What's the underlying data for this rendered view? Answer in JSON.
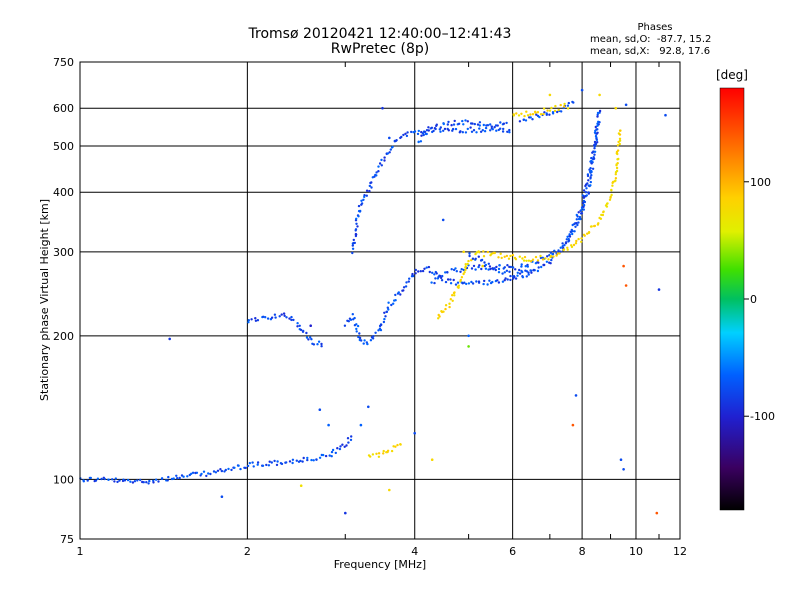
{
  "header": {
    "title": "Tromsø 20120421 12:40:00–12:41:43",
    "subtitle": "RwPretec (8p)"
  },
  "phases": {
    "title": "Phases",
    "row_o": "mean, sd,O:  -87.7, 15.2",
    "row_x": "mean, sd,X:   92.8, 17.6"
  },
  "colorbar": {
    "unit": "[deg]",
    "tick_labels": [
      "100",
      "0",
      "-100"
    ],
    "tick_values": [
      100,
      0,
      -100
    ],
    "range": [
      -180,
      180
    ]
  },
  "chart_data": {
    "type": "scatter",
    "xlabel": "Frequency [MHz]",
    "ylabel": "Stationary phase Virtual Height [km]",
    "xscale": "log",
    "yscale": "log",
    "xlim": [
      1,
      12
    ],
    "ylim": [
      75,
      750
    ],
    "xticks": [
      1,
      2,
      4,
      6,
      8,
      10,
      12
    ],
    "xtick_labels": [
      "1",
      "2",
      "4",
      "6",
      "8",
      "10",
      "12"
    ],
    "yticks": [
      75,
      100,
      200,
      300,
      400,
      500,
      600,
      750
    ],
    "ytick_labels": [
      "75",
      "100",
      "200",
      "300",
      "400",
      "500",
      "600",
      "750"
    ],
    "grid": true,
    "traces": [
      {
        "phase": -100,
        "points": [
          [
            1.0,
            100
          ],
          [
            1.1,
            100
          ],
          [
            1.2,
            99
          ],
          [
            1.3,
            99
          ],
          [
            1.4,
            100
          ],
          [
            1.5,
            101
          ],
          [
            1.6,
            102
          ],
          [
            1.8,
            104
          ],
          [
            2.0,
            107
          ],
          [
            2.2,
            108
          ],
          [
            2.4,
            109
          ],
          [
            2.6,
            110
          ],
          [
            2.8,
            112
          ],
          [
            3.0,
            118
          ],
          [
            3.1,
            124
          ]
        ]
      },
      {
        "phase": 100,
        "points": [
          [
            3.3,
            111
          ],
          [
            3.4,
            112
          ],
          [
            3.5,
            113
          ],
          [
            3.6,
            115
          ],
          [
            3.7,
            117
          ],
          [
            3.8,
            120
          ]
        ]
      },
      {
        "phase": -100,
        "points": [
          [
            2.0,
            216
          ],
          [
            2.1,
            217
          ],
          [
            2.2,
            219
          ],
          [
            2.3,
            222
          ],
          [
            2.45,
            213
          ],
          [
            2.6,
            195
          ],
          [
            2.75,
            190
          ]
        ]
      },
      {
        "phase": -100,
        "points": [
          [
            3.0,
            212
          ],
          [
            3.1,
            220
          ],
          [
            3.2,
            195
          ],
          [
            3.3,
            193
          ],
          [
            3.45,
            205
          ],
          [
            3.6,
            232
          ],
          [
            3.8,
            248
          ],
          [
            4.0,
            272
          ],
          [
            4.2,
            278
          ],
          [
            4.5,
            262
          ],
          [
            4.8,
            258
          ],
          [
            5.2,
            258
          ],
          [
            5.8,
            261
          ],
          [
            6.5,
            272
          ],
          [
            7.0,
            287
          ],
          [
            7.5,
            315
          ],
          [
            8.0,
            375
          ],
          [
            8.2,
            430
          ],
          [
            8.5,
            520
          ],
          [
            8.6,
            600
          ]
        ]
      },
      {
        "phase": -100,
        "points": [
          [
            4.3,
            258
          ],
          [
            4.6,
            272
          ],
          [
            5.0,
            278
          ],
          [
            5.5,
            278
          ],
          [
            6.2,
            278
          ],
          [
            6.8,
            290
          ],
          [
            7.4,
            305
          ],
          [
            7.9,
            350
          ],
          [
            8.2,
            400
          ],
          [
            8.4,
            470
          ],
          [
            8.5,
            560
          ]
        ]
      },
      {
        "phase": -100,
        "points": [
          [
            3.1,
            300
          ],
          [
            3.15,
            350
          ],
          [
            3.2,
            380
          ],
          [
            3.3,
            405
          ],
          [
            3.4,
            435
          ],
          [
            3.5,
            462
          ],
          [
            3.6,
            490
          ],
          [
            3.7,
            515
          ],
          [
            3.8,
            528
          ],
          [
            4.0,
            530
          ],
          [
            4.3,
            538
          ],
          [
            4.8,
            540
          ],
          [
            5.5,
            540
          ],
          [
            6.0,
            540
          ]
        ]
      },
      {
        "phase": -100,
        "points": [
          [
            4.05,
            505
          ],
          [
            4.2,
            540
          ],
          [
            4.4,
            552
          ],
          [
            4.7,
            560
          ],
          [
            5.0,
            560
          ],
          [
            5.5,
            552
          ],
          [
            5.9,
            555
          ]
        ]
      },
      {
        "phase": -100,
        "points": [
          [
            6.2,
            560
          ],
          [
            6.6,
            575
          ],
          [
            7.0,
            588
          ],
          [
            7.4,
            600
          ],
          [
            7.8,
            618
          ]
        ]
      },
      {
        "phase": 100,
        "points": [
          [
            6.0,
            580
          ],
          [
            6.4,
            585
          ],
          [
            6.8,
            590
          ],
          [
            7.2,
            600
          ],
          [
            7.6,
            608
          ]
        ]
      },
      {
        "phase": 100,
        "points": [
          [
            4.4,
            218
          ],
          [
            4.6,
            232
          ],
          [
            4.8,
            255
          ],
          [
            5.0,
            288
          ],
          [
            5.2,
            298
          ],
          [
            5.5,
            296
          ],
          [
            6.0,
            292
          ],
          [
            6.5,
            290
          ],
          [
            7.0,
            293
          ],
          [
            7.5,
            303
          ],
          [
            8.0,
            320
          ],
          [
            8.5,
            345
          ],
          [
            9.0,
            390
          ],
          [
            9.2,
            440
          ],
          [
            9.3,
            500
          ],
          [
            9.35,
            550
          ]
        ]
      },
      {
        "phase": -100,
        "points": [
          [
            5.0,
            295
          ],
          [
            5.3,
            288
          ],
          [
            5.6,
            275
          ],
          [
            6.0,
            268
          ],
          [
            6.6,
            275
          ]
        ]
      }
    ],
    "scatter_points": [
      [
        1.45,
        197,
        -110
      ],
      [
        1.8,
        92,
        -100
      ],
      [
        2.5,
        97,
        90
      ],
      [
        2.6,
        210,
        -120
      ],
      [
        2.7,
        140,
        -100
      ],
      [
        2.8,
        130,
        -90
      ],
      [
        3.0,
        85,
        -110
      ],
      [
        3.2,
        130,
        -90
      ],
      [
        3.3,
        142,
        -100
      ],
      [
        3.5,
        600,
        -110
      ],
      [
        3.6,
        520,
        -100
      ],
      [
        3.6,
        95,
        100
      ],
      [
        4.0,
        125,
        -100
      ],
      [
        4.3,
        110,
        100
      ],
      [
        4.5,
        350,
        -100
      ],
      [
        4.9,
        300,
        100
      ],
      [
        5.3,
        280,
        100
      ],
      [
        5.0,
        200,
        -90
      ],
      [
        5.0,
        190,
        40
      ],
      [
        7.7,
        130,
        160
      ],
      [
        7.8,
        150,
        -100
      ],
      [
        9.4,
        110,
        -100
      ],
      [
        9.5,
        105,
        -100
      ],
      [
        9.5,
        280,
        160
      ],
      [
        9.6,
        255,
        160
      ],
      [
        10.9,
        85,
        160
      ],
      [
        11.0,
        250,
        -110
      ],
      [
        11.3,
        580,
        -100
      ],
      [
        9.6,
        610,
        -100
      ],
      [
        9.2,
        600,
        100
      ],
      [
        7.0,
        640,
        100
      ],
      [
        8.0,
        655,
        -100
      ],
      [
        8.6,
        640,
        100
      ]
    ]
  }
}
